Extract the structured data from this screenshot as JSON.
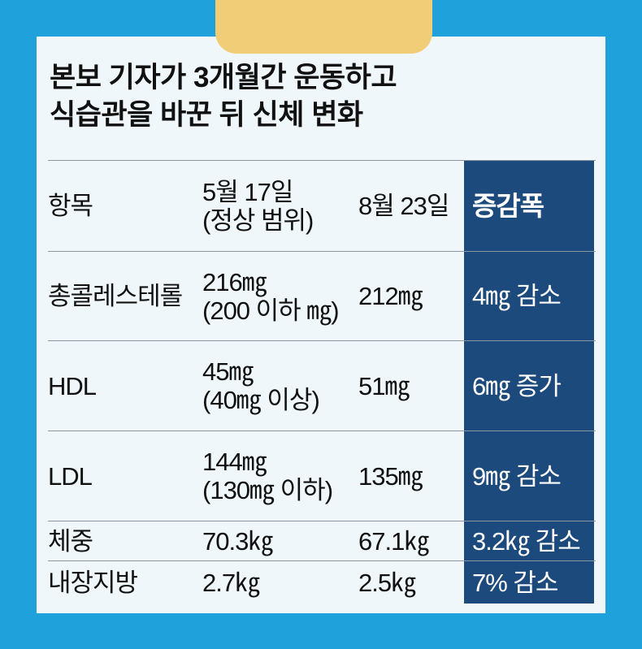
{
  "title": {
    "line1": "본보 기자가 3개월간 운동하고",
    "line2": "식습관을 바꾼 뒤 신체 변화"
  },
  "colors": {
    "background": "#1fa2dc",
    "tab": "#f2cd78",
    "card": "#eff7fb",
    "highlight_column": "#1d4a7c"
  },
  "table": {
    "header": {
      "item": "항목",
      "before_line1": "5월 17일",
      "before_line2": "(정상 범위)",
      "after": "8월 23일",
      "change": "증감폭"
    },
    "rows": [
      {
        "item": "총콜레스테롤",
        "before": "216㎎",
        "range": "(200 이하 ㎎)",
        "after": "212㎎",
        "change": "4㎎ 감소"
      },
      {
        "item": "HDL",
        "before": "45㎎",
        "range": "(40㎎ 이상)",
        "after": "51㎎",
        "change": "6㎎ 증가"
      },
      {
        "item": "LDL",
        "before": "144㎎",
        "range": "(130㎎ 이하)",
        "after": "135㎎",
        "change": "9㎎ 감소"
      },
      {
        "item": "체중",
        "before": "70.3㎏",
        "after": "67.1㎏",
        "change": "3.2㎏ 감소"
      },
      {
        "item": "내장지방",
        "before": "2.7㎏",
        "after": "2.5㎏",
        "change": "7% 감소"
      }
    ]
  }
}
